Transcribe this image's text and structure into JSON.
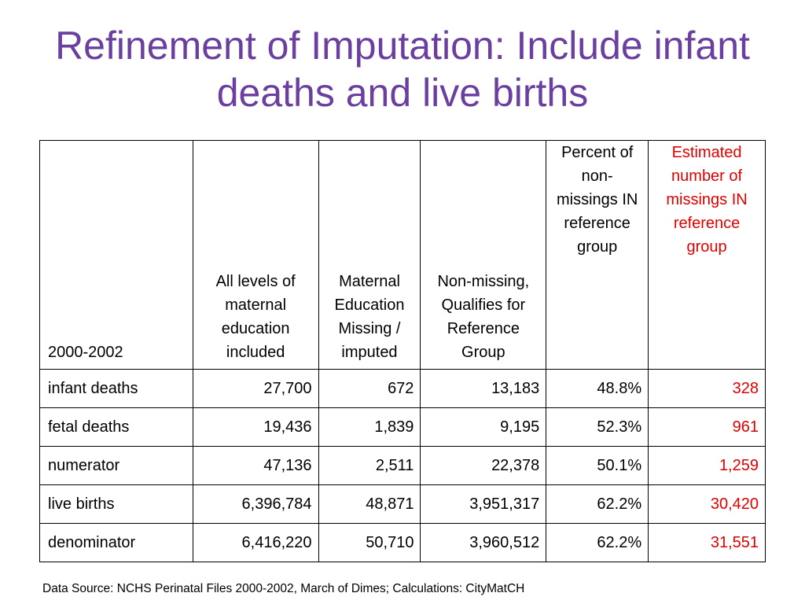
{
  "slide": {
    "title": "Refinement of Imputation: Include infant deaths and live births",
    "source": "Data Source: NCHS Perinatal Files 2000-2002, March of Dimes; Calculations: CityMatCH"
  },
  "table": {
    "headers": [
      "2000-2002",
      "All levels of maternal education included",
      "Maternal Education Missing / imputed",
      "Non-missing, Qualifies for Reference Group",
      "Percent of non-missings IN reference group",
      "Estimated number of missings IN reference group"
    ],
    "rows": [
      [
        "infant deaths",
        "27,700",
        "672",
        "13,183",
        "48.8%",
        "328"
      ],
      [
        "fetal deaths",
        "19,436",
        "1,839",
        "9,195",
        "52.3%",
        "961"
      ],
      [
        "numerator",
        "47,136",
        "2,511",
        "22,378",
        "50.1%",
        "1,259"
      ],
      [
        "live births",
        "6,396,784",
        "48,871",
        "3,951,317",
        "62.2%",
        "30,420"
      ],
      [
        "denominator",
        "6,416,220",
        "50,710",
        "3,960,512",
        "62.2%",
        "31,551"
      ]
    ],
    "colors": {
      "title": "#6b3fa0",
      "estimated": "#e00000"
    }
  }
}
